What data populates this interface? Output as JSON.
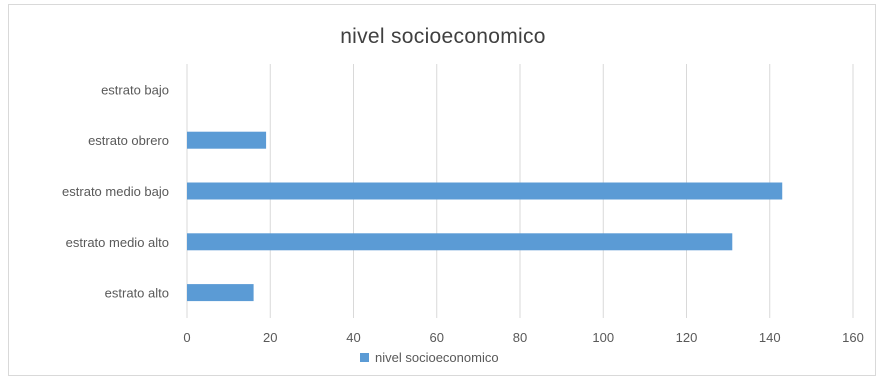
{
  "chart_data": {
    "type": "bar",
    "orientation": "horizontal",
    "title": "nivel socioeconomico",
    "xlabel": "",
    "ylabel": "",
    "categories": [
      "estrato bajo",
      "estrato obrero",
      "estrato medio bajo",
      "estrato medio alto",
      "estrato alto"
    ],
    "series": [
      {
        "name": "nivel socioeconomico",
        "values": [
          0,
          19,
          143,
          131,
          16
        ],
        "color": "#5b9bd5"
      }
    ],
    "xlim": [
      0,
      160
    ],
    "x_ticks": [
      "0",
      "20",
      "40",
      "60",
      "80",
      "100",
      "120",
      "140",
      "160"
    ],
    "grid": "vertical",
    "legend_position": "bottom"
  }
}
